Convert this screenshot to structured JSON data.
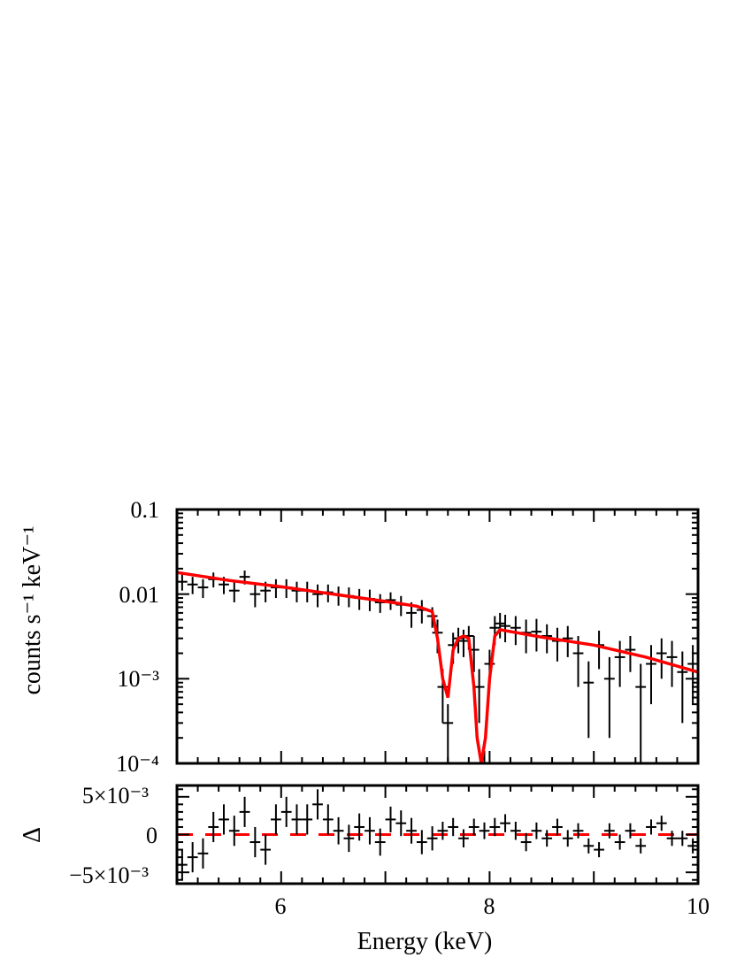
{
  "chart_data": [
    {
      "type": "line",
      "panel": "spectrum",
      "ylabel": "counts s⁻¹ keV⁻¹",
      "yscale": "log",
      "xlim": [
        5,
        10
      ],
      "ylim": [
        0.0001,
        0.1
      ],
      "y_tick_labels": [
        "0.1",
        "0.01",
        "10⁻³",
        "10⁻⁴"
      ],
      "x_tick_labels": [
        "6",
        "8",
        "10"
      ],
      "colors": {
        "data": "#000000",
        "model": "#ff0000"
      },
      "series": [
        {
          "kind": "data",
          "x": [
            5.05,
            5.15,
            5.25,
            5.35,
            5.45,
            5.55,
            5.65,
            5.75,
            5.85,
            5.95,
            6.05,
            6.15,
            6.25,
            6.35,
            6.45,
            6.55,
            6.65,
            6.75,
            6.85,
            6.95,
            7.05,
            7.15,
            7.25,
            7.35,
            7.45,
            7.5,
            7.55,
            7.6,
            7.65,
            7.7,
            7.75,
            7.8,
            7.85,
            7.9,
            7.95,
            8.0,
            8.05,
            8.1,
            8.15,
            8.25,
            8.35,
            8.45,
            8.55,
            8.65,
            8.75,
            8.85,
            8.95,
            9.05,
            9.15,
            9.25,
            9.35,
            9.45,
            9.55,
            9.65,
            9.75,
            9.85,
            9.95
          ],
          "y": [
            0.014,
            0.013,
            0.012,
            0.015,
            0.013,
            0.011,
            0.016,
            0.01,
            0.011,
            0.012,
            0.012,
            0.011,
            0.011,
            0.01,
            0.0105,
            0.0098,
            0.0095,
            0.009,
            0.0088,
            0.008,
            0.0085,
            0.0075,
            0.006,
            0.0065,
            0.0055,
            0.0035,
            0.0008,
            0.0003,
            0.0025,
            0.003,
            0.0028,
            0.0032,
            0.0022,
            0.0008,
            9e-05,
            0.0015,
            0.004,
            0.0045,
            0.0042,
            0.004,
            0.0035,
            0.0036,
            0.0032,
            0.0028,
            0.003,
            0.002,
            0.0009,
            0.0025,
            0.001,
            0.0018,
            0.0022,
            0.0008,
            0.0015,
            0.002,
            0.0018,
            0.0012,
            0.0015
          ],
          "err_lo": [
            0.003,
            0.003,
            0.003,
            0.003,
            0.003,
            0.003,
            0.003,
            0.003,
            0.003,
            0.003,
            0.003,
            0.003,
            0.003,
            0.003,
            0.0025,
            0.0025,
            0.0025,
            0.0025,
            0.0025,
            0.002,
            0.002,
            0.002,
            0.002,
            0.002,
            0.0015,
            0.0015,
            0.0005,
            0.0002,
            0.001,
            0.001,
            0.001,
            0.001,
            0.001,
            0.0005,
            5e-05,
            0.0007,
            0.0015,
            0.0015,
            0.0015,
            0.0015,
            0.0015,
            0.0015,
            0.0012,
            0.0012,
            0.0012,
            0.0012,
            0.0007,
            0.0012,
            0.0008,
            0.001,
            0.001,
            0.0007,
            0.001,
            0.001,
            0.001,
            0.0009,
            0.001
          ],
          "err_hi": [
            0.003,
            0.003,
            0.003,
            0.003,
            0.003,
            0.003,
            0.003,
            0.003,
            0.003,
            0.003,
            0.003,
            0.003,
            0.003,
            0.003,
            0.0025,
            0.0025,
            0.0025,
            0.0025,
            0.0025,
            0.002,
            0.002,
            0.002,
            0.002,
            0.002,
            0.0015,
            0.0015,
            0.0005,
            0.0002,
            0.001,
            0.001,
            0.001,
            0.001,
            0.001,
            0.0005,
            5e-05,
            0.0007,
            0.0015,
            0.0015,
            0.0015,
            0.0015,
            0.0015,
            0.0015,
            0.0012,
            0.0012,
            0.0012,
            0.0012,
            0.0007,
            0.0012,
            0.0008,
            0.001,
            0.001,
            0.0007,
            0.001,
            0.001,
            0.001,
            0.0009,
            0.001
          ]
        },
        {
          "kind": "model",
          "x": [
            5.0,
            5.5,
            6.0,
            6.5,
            7.0,
            7.3,
            7.45,
            7.5,
            7.55,
            7.6,
            7.65,
            7.7,
            7.75,
            7.8,
            7.85,
            7.88,
            7.92,
            7.96,
            8.0,
            8.05,
            8.1,
            8.5,
            9.0,
            9.5,
            10.0
          ],
          "y": [
            0.018,
            0.0145,
            0.0122,
            0.01,
            0.0082,
            0.0072,
            0.0062,
            0.003,
            0.001,
            0.0006,
            0.0022,
            0.003,
            0.0032,
            0.003,
            0.0008,
            0.0002,
            5e-05,
            0.0002,
            0.001,
            0.0032,
            0.0038,
            0.0031,
            0.0025,
            0.0018,
            0.0012
          ]
        }
      ]
    },
    {
      "type": "scatter",
      "panel": "residuals",
      "ylabel": "Δ",
      "xlabel": "Energy (keV)",
      "xlim": [
        5,
        10
      ],
      "ylim": [
        -0.0065,
        0.0065
      ],
      "y_tick_labels": [
        "5×10⁻³",
        "0",
        "−5×10⁻³"
      ],
      "x_tick_labels": [
        "6",
        "8",
        "10"
      ],
      "zero_line_color": "#ff0000",
      "series": [
        {
          "kind": "residuals",
          "x": [
            5.05,
            5.15,
            5.25,
            5.35,
            5.45,
            5.55,
            5.65,
            5.75,
            5.85,
            5.95,
            6.05,
            6.15,
            6.25,
            6.35,
            6.45,
            6.55,
            6.65,
            6.75,
            6.85,
            6.95,
            7.05,
            7.15,
            7.25,
            7.35,
            7.45,
            7.55,
            7.65,
            7.75,
            7.85,
            7.95,
            8.05,
            8.15,
            8.25,
            8.35,
            8.45,
            8.55,
            8.65,
            8.75,
            8.85,
            8.95,
            9.05,
            9.15,
            9.25,
            9.35,
            9.45,
            9.55,
            9.65,
            9.75,
            9.85,
            9.95
          ],
          "y": [
            -0.004,
            -0.003,
            -0.0025,
            0.001,
            0.002,
            0.0005,
            0.003,
            -0.001,
            -0.002,
            0.002,
            0.003,
            0.002,
            0.002,
            0.004,
            0.002,
            0.0005,
            -0.0005,
            0.001,
            0.0005,
            -0.001,
            0.002,
            0.0015,
            0.0005,
            -0.001,
            -0.0005,
            0.0005,
            0.001,
            -0.0005,
            0.001,
            0.0005,
            0.001,
            0.0015,
            0.0005,
            -0.001,
            0.0005,
            -0.0005,
            0.001,
            -0.0005,
            0.0005,
            -0.0015,
            -0.002,
            0.0005,
            -0.001,
            0.0005,
            -0.0015,
            0.001,
            0.0015,
            -0.0005,
            -0.0005,
            -0.0015
          ],
          "err": [
            0.002,
            0.002,
            0.002,
            0.002,
            0.002,
            0.002,
            0.002,
            0.002,
            0.002,
            0.002,
            0.002,
            0.002,
            0.002,
            0.002,
            0.002,
            0.0018,
            0.0018,
            0.0018,
            0.0018,
            0.0018,
            0.0017,
            0.0017,
            0.0017,
            0.0016,
            0.0016,
            0.0012,
            0.0012,
            0.0012,
            0.0011,
            0.0011,
            0.0012,
            0.0012,
            0.0012,
            0.0012,
            0.0011,
            0.0011,
            0.0011,
            0.0011,
            0.001,
            0.001,
            0.001,
            0.001,
            0.001,
            0.001,
            0.001,
            0.001,
            0.001,
            0.001,
            0.001,
            0.001
          ]
        }
      ]
    }
  ]
}
